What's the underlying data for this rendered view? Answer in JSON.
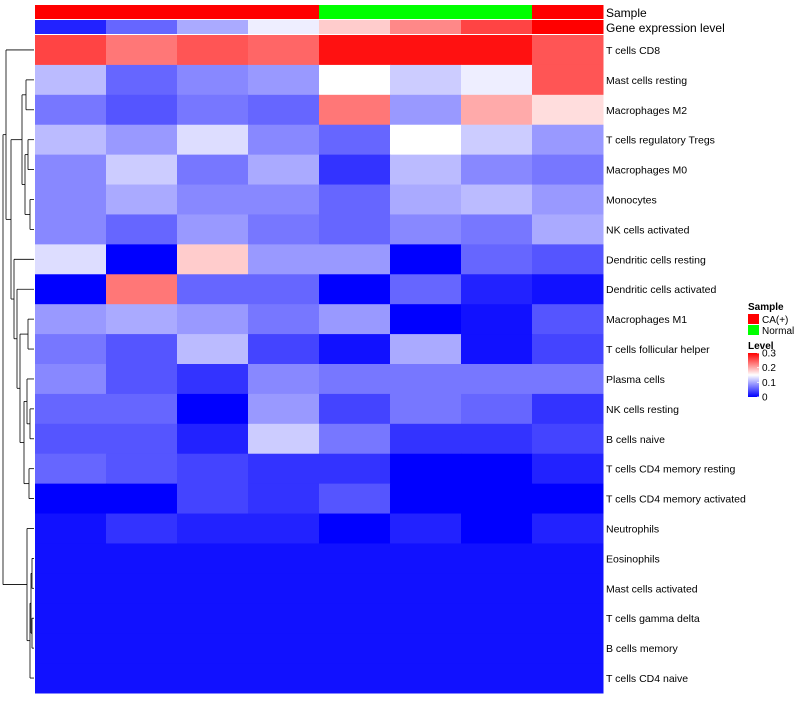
{
  "chart_data": {
    "type": "heatmap",
    "color_scale": {
      "title": "Level",
      "min": 0,
      "max": 0.3,
      "ticks": [
        0.3,
        0.2,
        0.1,
        0
      ],
      "colors": [
        "#0000ff",
        "#ffffff",
        "#ff0000"
      ]
    },
    "annotations": [
      {
        "name": "Sample",
        "values": [
          "CA(+)",
          "CA(+)",
          "CA(+)",
          "CA(+)",
          "Normal",
          "Normal",
          "Normal",
          "CA(+)"
        ]
      },
      {
        "name": "Gene expression level",
        "values": [
          0.02,
          0.06,
          0.1,
          0.14,
          0.18,
          0.22,
          0.26,
          0.3
        ]
      }
    ],
    "sample_legend": {
      "title": "Sample",
      "items": [
        {
          "label": "CA(+)",
          "color": "#ff0000"
        },
        {
          "label": "Normal",
          "color": "#00ff00"
        }
      ]
    },
    "rows": [
      "T cells CD8",
      "Mast cells resting",
      "Macrophages M2",
      "T cells regulatory  Tregs",
      "Macrophages M0",
      "Monocytes",
      "NK cells activated",
      "Dendritic cells resting",
      "Dendritic cells activated",
      "Macrophages M1",
      "T cells follicular helper",
      "Plasma cells",
      "NK cells resting",
      "B cells naive",
      "T cells CD4 memory resting",
      "T cells CD4 memory activated",
      "Neutrophils",
      "Eosinophils",
      "Mast cells activated",
      "T cells gamma delta",
      "B cells memory",
      "T cells CD4 naive"
    ],
    "values": [
      [
        0.26,
        0.23,
        0.25,
        0.24,
        0.29,
        0.29,
        0.29,
        0.25
      ],
      [
        0.11,
        0.06,
        0.08,
        0.09,
        0.15,
        0.12,
        0.14,
        0.25
      ],
      [
        0.07,
        0.05,
        0.07,
        0.06,
        0.23,
        0.09,
        0.2,
        0.17
      ],
      [
        0.11,
        0.09,
        0.13,
        0.08,
        0.06,
        0.15,
        0.12,
        0.09
      ],
      [
        0.08,
        0.12,
        0.07,
        0.1,
        0.03,
        0.11,
        0.08,
        0.07
      ],
      [
        0.08,
        0.1,
        0.08,
        0.08,
        0.06,
        0.1,
        0.11,
        0.09
      ],
      [
        0.08,
        0.06,
        0.09,
        0.07,
        0.06,
        0.08,
        0.07,
        0.1
      ],
      [
        0.13,
        0.0,
        0.18,
        0.09,
        0.09,
        0.0,
        0.06,
        0.05
      ],
      [
        0.0,
        0.23,
        0.06,
        0.06,
        0.0,
        0.06,
        0.02,
        0.01
      ],
      [
        0.09,
        0.1,
        0.09,
        0.07,
        0.09,
        0.0,
        0.01,
        0.05
      ],
      [
        0.07,
        0.05,
        0.11,
        0.04,
        0.01,
        0.1,
        0.01,
        0.04
      ],
      [
        0.08,
        0.05,
        0.03,
        0.08,
        0.07,
        0.07,
        0.07,
        0.07
      ],
      [
        0.06,
        0.06,
        0.0,
        0.09,
        0.04,
        0.07,
        0.06,
        0.03
      ],
      [
        0.05,
        0.05,
        0.02,
        0.12,
        0.07,
        0.03,
        0.03,
        0.04
      ],
      [
        0.06,
        0.05,
        0.04,
        0.03,
        0.03,
        0.0,
        0.0,
        0.02
      ],
      [
        0.0,
        0.0,
        0.04,
        0.03,
        0.05,
        0.0,
        0.0,
        0.0
      ],
      [
        0.01,
        0.03,
        0.02,
        0.02,
        0.0,
        0.02,
        0.0,
        0.02
      ],
      [
        0.01,
        0.01,
        0.01,
        0.01,
        0.01,
        0.01,
        0.01,
        0.01
      ],
      [
        0.01,
        0.01,
        0.01,
        0.01,
        0.01,
        0.01,
        0.01,
        0.01
      ],
      [
        0.01,
        0.01,
        0.01,
        0.01,
        0.01,
        0.01,
        0.01,
        0.01
      ],
      [
        0.01,
        0.01,
        0.01,
        0.01,
        0.01,
        0.01,
        0.01,
        0.01
      ],
      [
        0.01,
        0.01,
        0.01,
        0.01,
        0.01,
        0.01,
        0.01,
        0.01
      ]
    ]
  }
}
